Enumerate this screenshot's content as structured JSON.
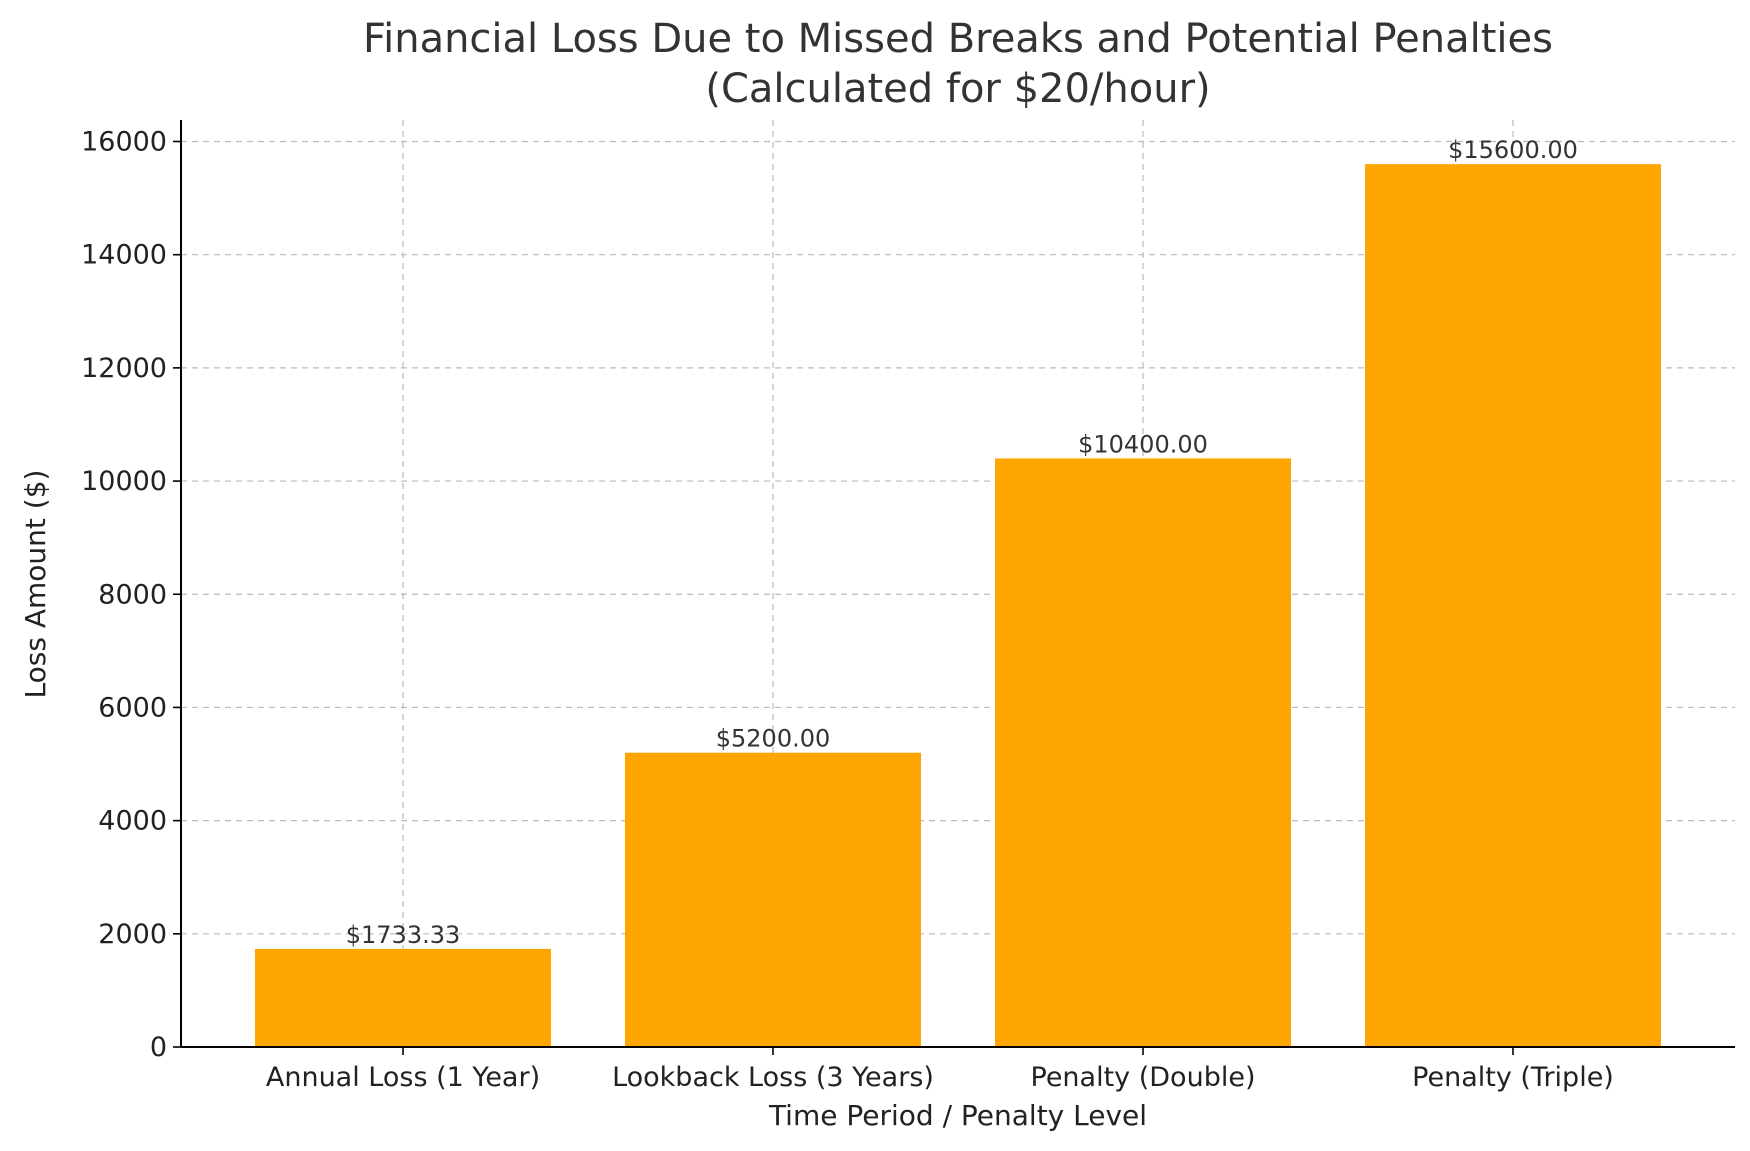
{
  "chart_data": {
    "type": "bar",
    "title_line1": "Financial Loss Due to Missed Breaks and Potential Penalties",
    "title_line2": "(Calculated for $20/hour)",
    "xlabel": "Time Period / Penalty Level",
    "ylabel": "Loss Amount ($)",
    "categories": [
      "Annual Loss (1 Year)",
      "Lookback Loss (3 Years)",
      "Penalty (Double)",
      "Penalty (Triple)"
    ],
    "values": [
      1733.33,
      5200,
      10400,
      15600
    ],
    "value_labels": [
      "$1733.33",
      "$5200.00",
      "$10400.00",
      "$15600.00"
    ],
    "ylim": [
      0,
      16380
    ],
    "yticks": [
      0,
      2000,
      4000,
      6000,
      8000,
      10000,
      12000,
      14000,
      16000
    ],
    "grid": true,
    "bar_color": "#FFA500"
  }
}
